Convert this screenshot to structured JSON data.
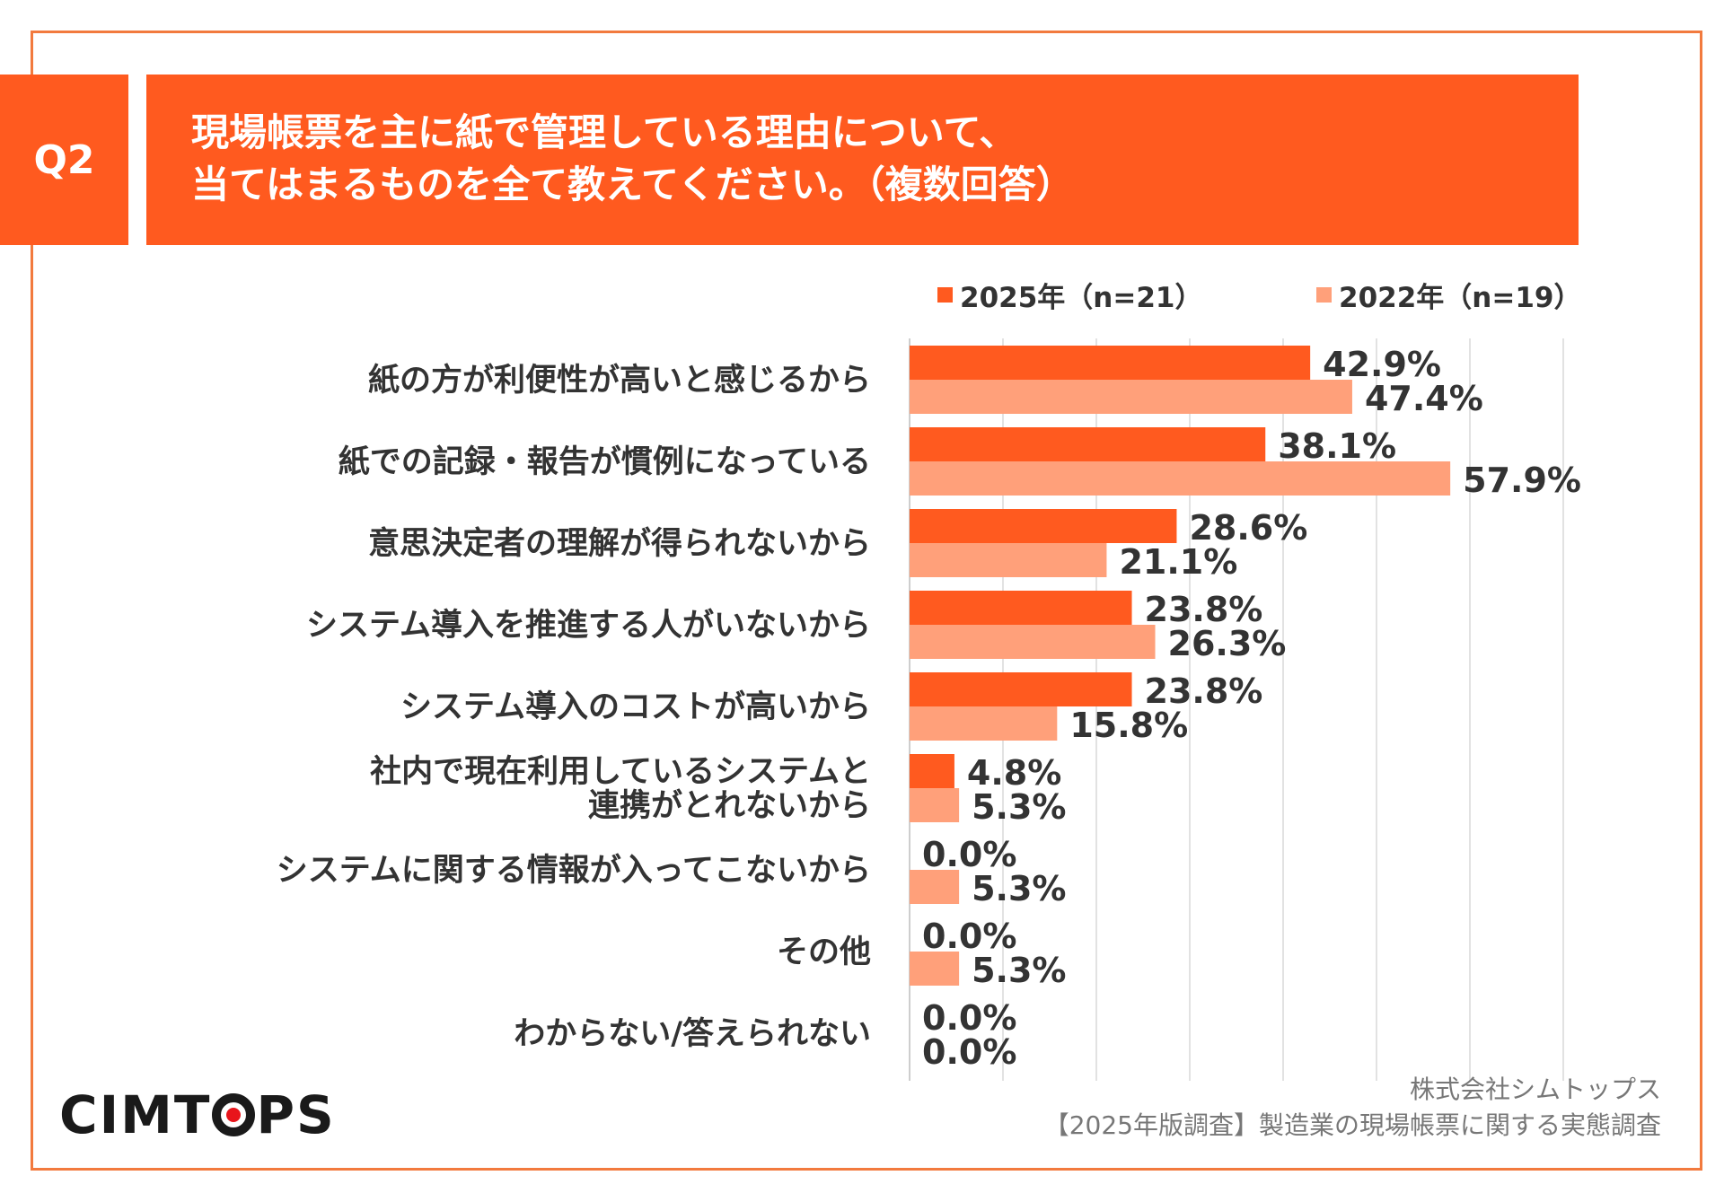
{
  "question": {
    "badge": "Q2",
    "title_line1": "現場帳票を主に紙で管理している理由について、",
    "title_line2": "当てはまるものを全て教えてください。（複数回答）"
  },
  "legend": {
    "series1": "2025年（n=21）",
    "series2": "2022年（n=19）"
  },
  "colors": {
    "accent": "#FF5A1F",
    "series1": "#FF5A1F",
    "series2": "#FFA07A",
    "frame": "#F27A3E"
  },
  "chart_data": {
    "type": "bar",
    "orientation": "horizontal",
    "title": "現場帳票を主に紙で管理している理由について、当てはまるものを全て教えてください。（複数回答）",
    "categories": [
      "紙の方が利便性が高いと感じるから",
      "紙での記録・報告が慣例になっている",
      "意思決定者の理解が得られないから",
      "システム導入を推進する人がいないから",
      "システム導入のコストが高いから",
      "社内で現在利用しているシステムと\n連携がとれないから",
      "システムに関する情報が入ってこないから",
      "その他",
      "わからない/答えられない"
    ],
    "series": [
      {
        "name": "2025年（n=21）",
        "values": [
          42.9,
          38.1,
          28.6,
          23.8,
          23.8,
          4.8,
          0.0,
          0.0,
          0.0
        ]
      },
      {
        "name": "2022年（n=19）",
        "values": [
          47.4,
          57.9,
          21.1,
          26.3,
          15.8,
          5.3,
          5.3,
          5.3,
          0.0
        ]
      }
    ],
    "value_suffix": "%",
    "xlim": [
      0,
      70
    ],
    "grid": true,
    "legend_position": "top-right"
  },
  "footer": {
    "logo": "CIMTOPS",
    "source_line1": "株式会社シムトップス",
    "source_line2": "【2025年版調査】製造業の現場帳票に関する実態調査"
  }
}
